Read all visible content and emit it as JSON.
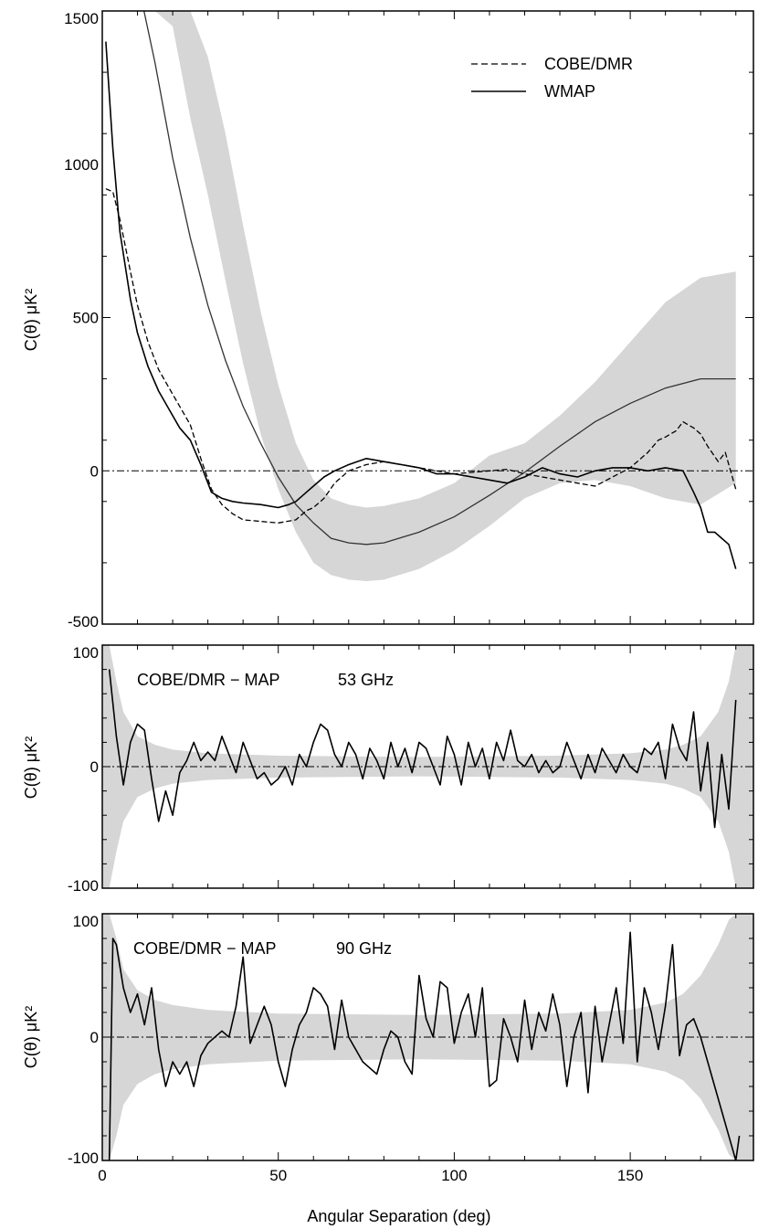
{
  "chart_data": [
    {
      "type": "line",
      "panel": "top",
      "ylabel": "C(θ) μK²",
      "xlim": [
        0,
        185
      ],
      "ylim": [
        -500,
        1500
      ],
      "yticks": [
        "1500",
        "1000",
        "500",
        "0",
        "-500"
      ],
      "legend_position": "top-right",
      "legend": [
        {
          "label": "COBE/DMR",
          "style": "dashed"
        },
        {
          "label": "WMAP",
          "style": "solid"
        }
      ],
      "band": {
        "x": [
          0,
          5,
          10,
          15,
          20,
          25,
          30,
          35,
          40,
          45,
          50,
          55,
          60,
          65,
          70,
          75,
          80,
          90,
          100,
          110,
          120,
          130,
          140,
          150,
          160,
          170,
          180
        ],
        "lower": [
          1500,
          1500,
          1500,
          1500,
          1450,
          1150,
          900,
          620,
          350,
          120,
          -60,
          -200,
          -300,
          -340,
          -355,
          -360,
          -355,
          -320,
          -260,
          -180,
          -90,
          -40,
          -30,
          -50,
          -90,
          -110,
          -40
        ],
        "upper": [
          1500,
          1500,
          1500,
          1500,
          1500,
          1500,
          1350,
          1100,
          800,
          520,
          280,
          90,
          -30,
          -90,
          -110,
          -120,
          -115,
          -90,
          -40,
          50,
          90,
          180,
          290,
          420,
          550,
          630,
          650
        ]
      },
      "series": [
        {
          "name": "COBE/DMR",
          "style": "dashed",
          "x": [
            1,
            3,
            5,
            8,
            10,
            13,
            16,
            19,
            22,
            25,
            28,
            31,
            34,
            37,
            40,
            45,
            50,
            55,
            58,
            60,
            63,
            66,
            70,
            75,
            80,
            85,
            90,
            95,
            100,
            105,
            110,
            115,
            120,
            125,
            130,
            135,
            140,
            145,
            150,
            155,
            158,
            160,
            163,
            165,
            168,
            170,
            172,
            175,
            177,
            180
          ],
          "y": [
            920,
            910,
            820,
            650,
            540,
            420,
            330,
            270,
            210,
            150,
            40,
            -60,
            -110,
            -140,
            -160,
            -165,
            -170,
            -160,
            -130,
            -120,
            -90,
            -40,
            0,
            20,
            30,
            20,
            10,
            0,
            -10,
            -5,
            0,
            5,
            -10,
            -20,
            -30,
            -40,
            -50,
            -20,
            10,
            60,
            100,
            110,
            130,
            160,
            140,
            120,
            80,
            30,
            60,
            -60
          ]
        },
        {
          "name": "WMAP",
          "style": "solid",
          "x": [
            1,
            3,
            5,
            8,
            10,
            13,
            16,
            19,
            22,
            25,
            28,
            31,
            34,
            37,
            40,
            45,
            50,
            53,
            55,
            58,
            60,
            63,
            66,
            70,
            75,
            80,
            85,
            90,
            95,
            100,
            105,
            110,
            115,
            120,
            125,
            130,
            135,
            140,
            145,
            150,
            155,
            160,
            165,
            168,
            170,
            172,
            174,
            176,
            178,
            180
          ],
          "y": [
            1400,
            1050,
            780,
            560,
            450,
            340,
            260,
            200,
            140,
            100,
            20,
            -70,
            -90,
            -100,
            -105,
            -110,
            -120,
            -110,
            -100,
            -70,
            -50,
            -20,
            0,
            20,
            40,
            30,
            20,
            10,
            -10,
            -10,
            -20,
            -30,
            -40,
            -20,
            10,
            -10,
            -20,
            0,
            10,
            10,
            0,
            10,
            0,
            -70,
            -120,
            -200,
            -200,
            -220,
            -240,
            -320
          ]
        }
      ],
      "model_curve": {
        "name": "model",
        "x": [
          0,
          5,
          10,
          15,
          20,
          25,
          30,
          35,
          40,
          45,
          50,
          55,
          60,
          65,
          70,
          75,
          80,
          90,
          100,
          110,
          120,
          130,
          140,
          150,
          160,
          170,
          180
        ],
        "y": [
          1650,
          1650,
          1600,
          1330,
          1020,
          760,
          540,
          360,
          210,
          90,
          -20,
          -110,
          -170,
          -220,
          -235,
          -240,
          -235,
          -200,
          -150,
          -80,
          -5,
          80,
          160,
          220,
          270,
          300,
          300
        ]
      }
    },
    {
      "type": "line",
      "panel": "middle",
      "label": "COBE/DMR − MAP",
      "label_freq": "53 GHz",
      "ylabel": "C(θ) μK²",
      "xlim": [
        0,
        185
      ],
      "ylim": [
        -100,
        100
      ],
      "yticks": [
        "100",
        "0",
        "-100"
      ],
      "band_halfwidth": {
        "x": [
          0,
          2,
          4,
          6,
          10,
          15,
          20,
          30,
          50,
          90,
          130,
          150,
          160,
          165,
          170,
          175,
          178,
          180,
          182,
          185
        ],
        "y": [
          100,
          100,
          70,
          45,
          25,
          18,
          14,
          11,
          9,
          8,
          9,
          11,
          14,
          18,
          25,
          45,
          70,
          100,
          100,
          100
        ]
      },
      "series": [
        {
          "name": "difference 53 GHz",
          "style": "solid",
          "x": [
            2,
            4,
            6,
            8,
            10,
            12,
            14,
            16,
            18,
            20,
            22,
            24,
            26,
            28,
            30,
            32,
            34,
            36,
            38,
            40,
            42,
            44,
            46,
            48,
            50,
            52,
            54,
            56,
            58,
            60,
            62,
            64,
            66,
            68,
            70,
            72,
            74,
            76,
            78,
            80,
            82,
            84,
            86,
            88,
            90,
            92,
            94,
            96,
            98,
            100,
            102,
            104,
            106,
            108,
            110,
            112,
            114,
            116,
            118,
            120,
            122,
            124,
            126,
            128,
            130,
            132,
            134,
            136,
            138,
            140,
            142,
            144,
            146,
            148,
            150,
            152,
            154,
            156,
            158,
            160,
            162,
            164,
            166,
            168,
            170,
            172,
            174,
            176,
            178,
            180
          ],
          "y": [
            80,
            25,
            -15,
            20,
            35,
            30,
            -10,
            -45,
            -20,
            -40,
            -5,
            5,
            20,
            5,
            12,
            5,
            25,
            10,
            -5,
            20,
            5,
            -10,
            -5,
            -15,
            -10,
            0,
            -15,
            10,
            0,
            20,
            35,
            30,
            10,
            0,
            20,
            10,
            -10,
            15,
            5,
            -10,
            20,
            0,
            15,
            -5,
            20,
            15,
            0,
            -15,
            25,
            10,
            -15,
            20,
            0,
            15,
            -10,
            20,
            5,
            30,
            5,
            0,
            10,
            -5,
            5,
            -5,
            0,
            20,
            5,
            -10,
            10,
            -5,
            15,
            5,
            -5,
            10,
            0,
            -5,
            15,
            10,
            20,
            -10,
            35,
            15,
            5,
            45,
            -20,
            20,
            -50,
            10,
            -35,
            55
          ]
        }
      ]
    },
    {
      "type": "line",
      "panel": "bottom",
      "label": "COBE/DMR − MAP",
      "label_freq": "90 GHz",
      "ylabel": "C(θ) μK²",
      "xlabel": "Angular Separation (deg)",
      "xlim": [
        0,
        185
      ],
      "ylim": [
        -100,
        100
      ],
      "xticks": [
        "0",
        "50",
        "100",
        "150"
      ],
      "yticks": [
        "100",
        "0",
        "-100"
      ],
      "band_halfwidth": {
        "x": [
          0,
          2,
          4,
          6,
          10,
          15,
          20,
          30,
          50,
          90,
          130,
          150,
          160,
          165,
          170,
          175,
          178,
          180,
          182,
          185
        ],
        "y": [
          100,
          100,
          80,
          55,
          38,
          30,
          26,
          22,
          19,
          18,
          19,
          22,
          28,
          35,
          50,
          75,
          95,
          100,
          100,
          100
        ]
      },
      "series": [
        {
          "name": "difference 90 GHz",
          "style": "solid",
          "x": [
            2,
            3,
            4,
            6,
            8,
            10,
            12,
            14,
            16,
            18,
            20,
            22,
            24,
            26,
            28,
            30,
            32,
            34,
            36,
            38,
            40,
            42,
            44,
            46,
            48,
            50,
            52,
            54,
            56,
            58,
            60,
            62,
            64,
            66,
            68,
            70,
            72,
            74,
            76,
            78,
            80,
            82,
            84,
            86,
            88,
            90,
            92,
            94,
            96,
            98,
            100,
            102,
            104,
            106,
            108,
            110,
            112,
            114,
            116,
            118,
            120,
            122,
            124,
            126,
            128,
            130,
            132,
            134,
            136,
            138,
            140,
            142,
            144,
            146,
            148,
            150,
            152,
            154,
            156,
            158,
            160,
            162,
            164,
            166,
            168,
            170,
            172,
            174,
            176,
            178,
            180,
            181
          ],
          "y": [
            -100,
            80,
            75,
            40,
            20,
            35,
            10,
            40,
            -10,
            -40,
            -20,
            -30,
            -20,
            -40,
            -15,
            -5,
            0,
            5,
            0,
            25,
            65,
            -5,
            10,
            25,
            10,
            -20,
            -40,
            -10,
            10,
            20,
            40,
            35,
            25,
            -10,
            30,
            0,
            -10,
            -20,
            -25,
            -30,
            -10,
            5,
            0,
            -20,
            -30,
            50,
            15,
            0,
            45,
            40,
            -5,
            20,
            35,
            0,
            40,
            -40,
            -35,
            15,
            0,
            -20,
            30,
            -10,
            20,
            5,
            35,
            10,
            -40,
            0,
            20,
            -45,
            25,
            -20,
            10,
            40,
            -5,
            85,
            -20,
            40,
            20,
            -10,
            25,
            75,
            -15,
            10,
            15,
            0,
            -20,
            -40,
            -60,
            -80,
            -100,
            -80
          ]
        }
      ]
    }
  ]
}
